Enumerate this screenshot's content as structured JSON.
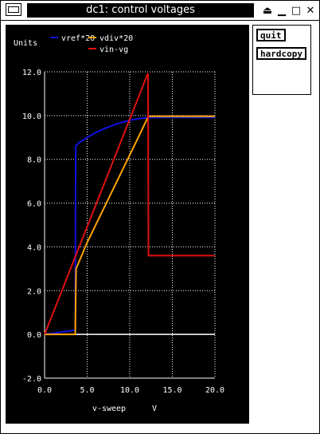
{
  "window": {
    "title": "dc1: control voltages",
    "controls": [
      "⏏",
      "▁",
      "□",
      "✕"
    ]
  },
  "buttons": {
    "quit": "quit",
    "hardcopy": "hardcopy"
  },
  "chart_data": {
    "type": "line",
    "title": "",
    "ylabel": "Units",
    "xlabel": "v-sweep",
    "xunit": "V",
    "xlim": [
      0,
      20
    ],
    "ylim": [
      -2,
      12
    ],
    "x_ticks": [
      "0.0",
      "5.0",
      "10.0",
      "15.0",
      "20.0"
    ],
    "y_ticks": [
      "-2.0",
      "0.0",
      "2.0",
      "4.0",
      "6.0",
      "8.0",
      "10.0",
      "12.0"
    ],
    "grid": true,
    "legend_position": "top-left",
    "series": [
      {
        "name": "vref*20",
        "color": "#1010e0",
        "x": [
          0,
          3.6,
          3.65,
          4,
          5,
          6,
          7,
          8,
          9,
          10,
          11,
          12,
          13,
          20
        ],
        "y": [
          0,
          0.2,
          8.6,
          8.75,
          9.0,
          9.22,
          9.4,
          9.55,
          9.68,
          9.78,
          9.86,
          9.9,
          9.92,
          9.92
        ]
      },
      {
        "name": "vdiv*20",
        "color": "#ffa500",
        "x": [
          0,
          3.6,
          3.7,
          5,
          7,
          9,
          11,
          12.1,
          12.2,
          20
        ],
        "y": [
          0,
          0,
          3.0,
          4.2,
          5.8,
          7.4,
          9.0,
          9.9,
          9.97,
          9.97
        ]
      },
      {
        "name": "vin-vg",
        "color": "#e01010",
        "x": [
          0,
          12.1,
          12.15,
          12.2,
          20
        ],
        "y": [
          0,
          11.9,
          11.9,
          3.6,
          3.6
        ]
      }
    ]
  }
}
